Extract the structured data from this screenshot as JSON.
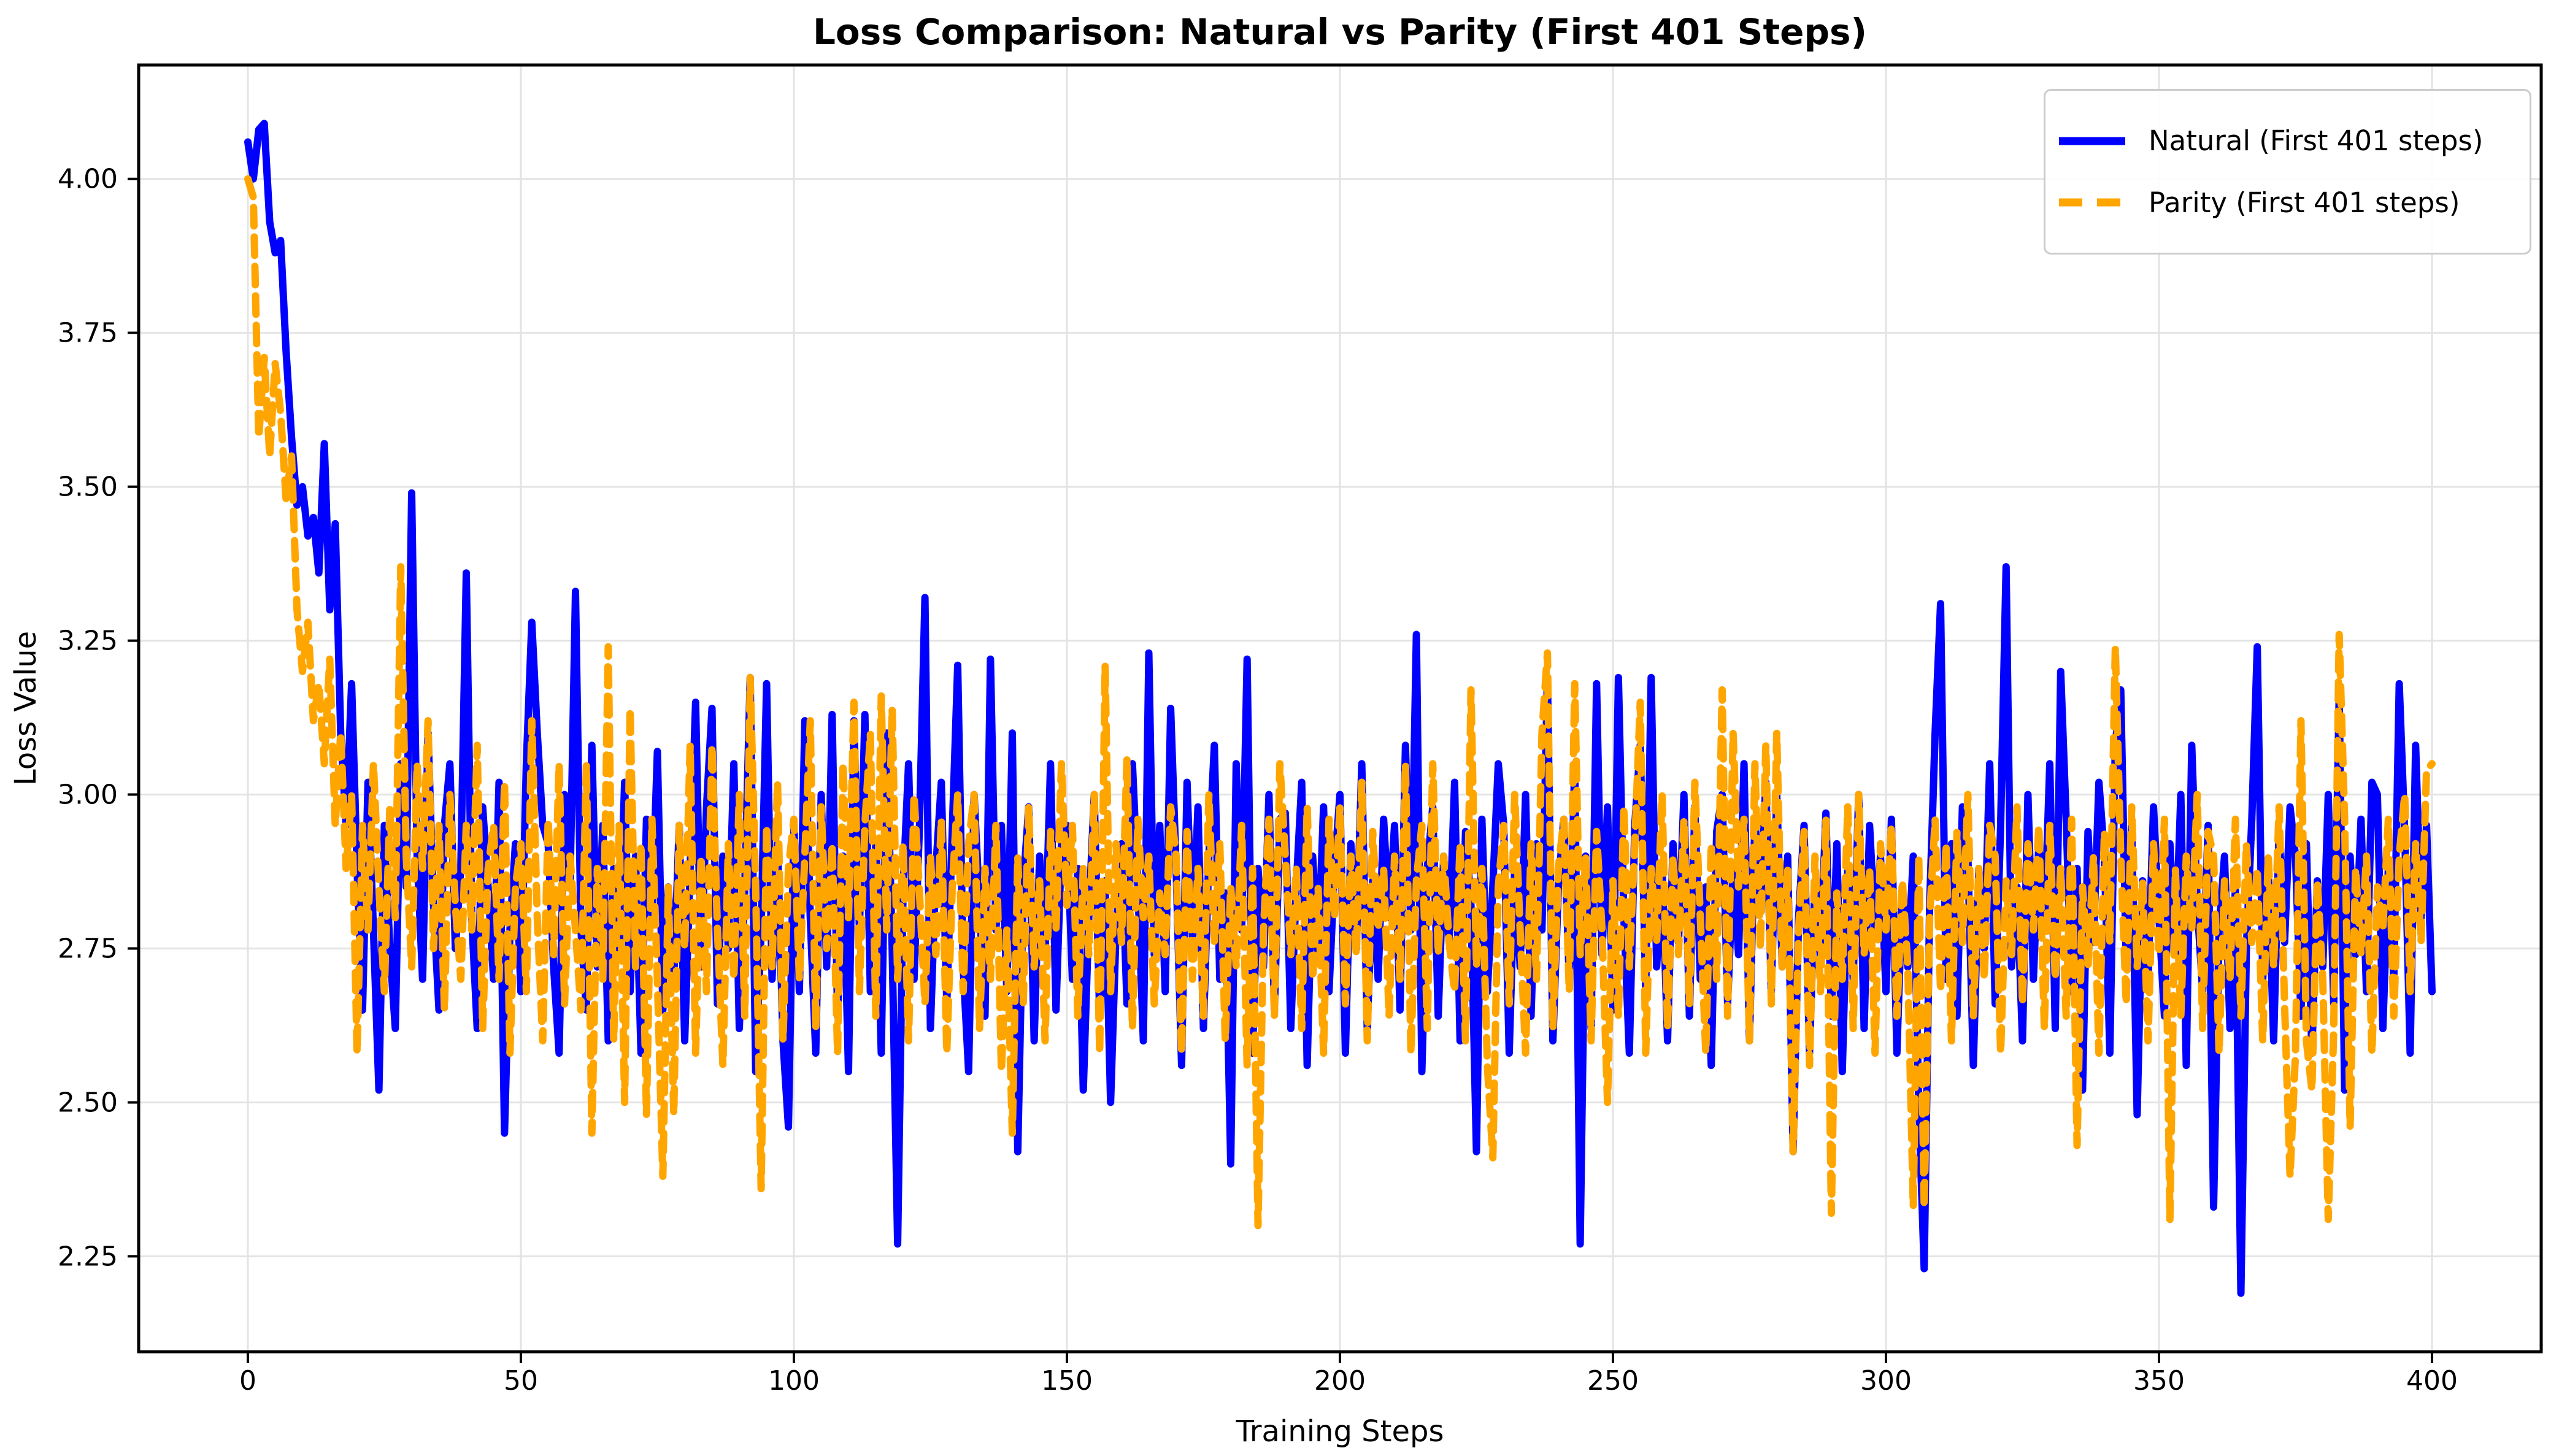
{
  "chart_data": {
    "type": "line",
    "title": "Loss Comparison: Natural vs Parity (First 401 Steps)",
    "xlabel": "Training Steps",
    "ylabel": "Loss Value",
    "x_ticks": [
      0,
      50,
      100,
      150,
      200,
      250,
      300,
      350,
      400
    ],
    "y_ticks": [
      2.25,
      2.5,
      2.75,
      3.0,
      3.25,
      3.5,
      3.75,
      4.0
    ],
    "y_tick_labels": [
      "2.25",
      "2.50",
      "2.75",
      "3.00",
      "3.25",
      "3.50",
      "3.75",
      "4.00"
    ],
    "xlim": [
      -20,
      420
    ],
    "ylim": [
      2.095,
      4.185
    ],
    "grid": true,
    "grid_color": "#e3e3e3",
    "spine_color": "#000000",
    "background_color": "#ffffff",
    "legend_position": "upper right",
    "series": [
      {
        "name": "Natural (First 401 steps)",
        "color": "#0000ff",
        "style": "solid",
        "x_start": 0,
        "x_step": 1,
        "values": [
          4.06,
          4.0,
          4.08,
          4.09,
          3.93,
          3.88,
          3.9,
          3.72,
          3.58,
          3.47,
          3.5,
          3.42,
          3.45,
          3.36,
          3.57,
          3.3,
          3.44,
          3.1,
          2.95,
          3.18,
          2.88,
          2.65,
          3.02,
          2.78,
          2.52,
          2.95,
          2.75,
          2.62,
          3.05,
          2.85,
          3.49,
          2.9,
          2.7,
          3.1,
          2.82,
          2.65,
          2.95,
          3.05,
          2.75,
          2.88,
          3.36,
          2.8,
          2.62,
          2.98,
          2.85,
          2.7,
          3.02,
          2.45,
          2.78,
          2.92,
          2.68,
          3.05,
          3.28,
          3.1,
          2.95,
          2.92,
          2.72,
          2.58,
          3.0,
          2.85,
          3.33,
          2.78,
          2.65,
          3.08,
          2.72,
          2.95,
          2.6,
          2.88,
          2.74,
          3.02,
          2.68,
          2.9,
          2.58,
          2.96,
          2.8,
          3.07,
          2.65,
          2.85,
          2.7,
          2.95,
          2.6,
          2.88,
          3.15,
          2.72,
          2.98,
          3.14,
          2.66,
          2.9,
          2.75,
          3.05,
          2.62,
          2.85,
          3.19,
          2.55,
          2.78,
          3.18,
          2.7,
          2.92,
          2.6,
          2.46,
          2.95,
          2.68,
          3.12,
          2.8,
          2.58,
          3.0,
          2.72,
          3.13,
          2.64,
          2.9,
          2.55,
          3.12,
          2.78,
          3.13,
          2.68,
          2.92,
          2.58,
          3.1,
          2.75,
          2.27,
          2.85,
          3.05,
          2.7,
          2.95,
          3.32,
          2.62,
          2.88,
          3.02,
          2.66,
          2.94,
          3.21,
          2.72,
          2.55,
          3.0,
          2.82,
          2.64,
          3.22,
          2.78,
          2.95,
          2.68,
          3.1,
          2.42,
          2.85,
          2.98,
          2.6,
          2.9,
          2.74,
          3.05,
          2.65,
          2.92,
          2.95,
          2.7,
          2.88,
          2.52,
          2.8,
          3.0,
          2.64,
          2.86,
          2.5,
          2.78,
          2.92,
          2.66,
          3.05,
          2.85,
          2.6,
          3.23,
          2.74,
          2.95,
          2.68,
          3.14,
          2.88,
          2.56,
          3.02,
          2.76,
          2.98,
          2.62,
          2.9,
          3.08,
          2.7,
          2.84,
          2.4,
          3.05,
          2.78,
          3.22,
          2.58,
          2.88,
          2.72,
          3.0,
          2.65,
          2.96,
          2.97,
          2.62,
          2.85,
          3.02,
          2.56,
          2.9,
          2.74,
          2.98,
          2.68,
          2.88,
          3.0,
          2.58,
          2.92,
          2.75,
          3.05,
          2.62,
          2.86,
          2.7,
          2.96,
          2.8,
          2.95,
          2.65,
          3.08,
          2.78,
          3.26,
          2.55,
          2.88,
          2.98,
          2.64,
          2.9,
          2.76,
          3.02,
          2.6,
          2.94,
          2.82,
          2.42,
          2.96,
          2.68,
          2.85,
          3.05,
          2.95,
          2.58,
          2.88,
          2.72,
          3.0,
          2.64,
          2.92,
          2.78,
          3.19,
          2.6,
          2.85,
          2.96,
          2.7,
          3.05,
          2.27,
          2.9,
          2.62,
          3.18,
          2.74,
          2.98,
          2.65,
          3.19,
          2.8,
          2.58,
          2.95,
          3.08,
          2.68,
          3.19,
          2.72,
          2.88,
          2.6,
          2.92,
          2.76,
          3.0,
          2.64,
          2.98,
          2.7,
          2.85,
          2.56,
          2.94,
          3.0,
          2.66,
          2.88,
          2.74,
          3.05,
          2.6,
          2.96,
          2.82,
          3.02,
          2.68,
          3.0,
          2.72,
          2.9,
          2.42,
          2.8,
          2.95,
          2.58,
          2.86,
          2.74,
          2.97,
          2.64,
          2.92,
          2.55,
          2.88,
          2.7,
          3.0,
          2.62,
          2.95,
          2.78,
          2.9,
          2.68,
          2.96,
          2.58,
          2.85,
          2.72,
          2.9,
          2.5,
          2.23,
          2.82,
          3.1,
          3.31,
          2.7,
          2.92,
          2.64,
          2.98,
          2.9,
          2.56,
          2.88,
          2.75,
          3.05,
          2.66,
          2.95,
          3.37,
          2.72,
          2.85,
          2.6,
          3.0,
          2.7,
          2.92,
          2.78,
          3.05,
          2.62,
          3.2,
          2.96,
          2.68,
          2.88,
          2.52,
          2.94,
          2.76,
          3.02,
          2.9,
          2.58,
          3.08,
          3.17,
          2.72,
          2.95,
          2.48,
          2.86,
          2.7,
          2.98,
          2.8,
          2.64,
          2.92,
          2.74,
          3.0,
          2.56,
          3.08,
          2.82,
          2.68,
          2.95,
          2.33,
          2.78,
          2.9,
          2.62,
          2.85,
          2.19,
          2.75,
          2.96,
          3.24,
          2.7,
          2.88,
          2.6,
          2.94,
          2.76,
          2.98,
          2.9,
          2.64,
          2.92,
          2.58,
          2.86,
          2.72,
          3.0,
          2.66,
          3.16,
          2.52,
          2.9,
          2.74,
          2.96,
          2.68,
          3.02,
          3.0,
          2.62,
          2.88,
          2.7,
          3.18,
          2.94,
          2.58,
          3.08,
          2.8,
          2.95,
          2.68
        ]
      },
      {
        "name": "Parity (First 401 steps)",
        "color": "#ffa500",
        "style": "dashed",
        "x_start": 0,
        "x_step": 1,
        "values": [
          4.0,
          3.97,
          3.58,
          3.71,
          3.55,
          3.7,
          3.62,
          3.48,
          3.55,
          3.3,
          3.2,
          3.28,
          3.12,
          3.18,
          3.05,
          3.22,
          2.95,
          3.1,
          2.88,
          3.0,
          2.58,
          2.95,
          2.78,
          3.05,
          2.85,
          2.68,
          2.98,
          2.8,
          3.37,
          2.9,
          2.72,
          3.05,
          2.88,
          3.12,
          2.75,
          2.95,
          2.65,
          3.0,
          2.82,
          2.7,
          2.95,
          2.78,
          3.08,
          2.62,
          2.88,
          2.95,
          2.7,
          3.02,
          2.58,
          2.85,
          2.92,
          2.68,
          3.12,
          2.8,
          2.6,
          2.96,
          2.74,
          3.05,
          2.66,
          2.9,
          2.78,
          2.65,
          3.05,
          2.45,
          2.88,
          2.7,
          3.24,
          2.6,
          2.95,
          2.5,
          3.14,
          2.72,
          2.92,
          2.48,
          2.96,
          2.7,
          2.38,
          2.85,
          2.48,
          2.95,
          2.75,
          3.08,
          2.58,
          2.9,
          2.68,
          3.08,
          2.78,
          2.56,
          2.92,
          2.7,
          3.0,
          2.64,
          3.19,
          2.85,
          2.36,
          2.95,
          2.72,
          3.02,
          2.6,
          2.88,
          2.96,
          2.7,
          2.9,
          3.12,
          2.62,
          2.98,
          2.75,
          2.92,
          2.58,
          3.05,
          2.8,
          3.15,
          2.68,
          2.95,
          3.1,
          2.64,
          3.16,
          2.78,
          3.14,
          2.7,
          2.92,
          2.6,
          3.0,
          2.84,
          2.66,
          2.9,
          2.74,
          2.96,
          2.58,
          2.85,
          3.0,
          2.68,
          2.92,
          3.0,
          2.62,
          2.88,
          2.7,
          2.95,
          2.55,
          2.78,
          2.45,
          2.9,
          2.66,
          2.98,
          2.72,
          2.86,
          2.6,
          2.94,
          2.78,
          3.05,
          2.82,
          2.95,
          2.64,
          2.88,
          2.74,
          3.0,
          2.58,
          3.21,
          2.68,
          2.92,
          2.76,
          3.06,
          2.62,
          2.96,
          2.8,
          2.9,
          2.66,
          2.84,
          2.74,
          2.98,
          2.9,
          2.58,
          2.94,
          2.7,
          2.88,
          2.64,
          3.0,
          2.76,
          2.92,
          2.6,
          2.85,
          2.72,
          2.95,
          2.56,
          2.88,
          2.3,
          2.78,
          2.96,
          2.64,
          3.05,
          2.9,
          2.74,
          2.88,
          2.62,
          2.98,
          2.7,
          2.85,
          2.58,
          2.96,
          2.8,
          2.98,
          2.66,
          2.9,
          2.74,
          3.02,
          2.6,
          2.94,
          2.78,
          2.88,
          2.64,
          2.9,
          2.7,
          3.05,
          2.58,
          2.86,
          2.95,
          2.62,
          3.05,
          2.74,
          2.9,
          2.76,
          2.68,
          2.92,
          2.6,
          3.17,
          2.72,
          2.88,
          2.56,
          2.41,
          2.85,
          2.95,
          2.66,
          3.0,
          2.78,
          2.58,
          2.92,
          2.7,
          3.1,
          3.23,
          2.62,
          2.88,
          2.96,
          2.68,
          3.18,
          2.74,
          2.9,
          2.6,
          2.94,
          2.78,
          2.5,
          2.86,
          2.64,
          2.98,
          2.72,
          2.92,
          3.15,
          2.58,
          2.88,
          2.76,
          3.0,
          2.62,
          2.9,
          2.74,
          2.96,
          2.66,
          3.02,
          2.8,
          2.58,
          2.92,
          2.7,
          3.17,
          2.64,
          3.1,
          2.85,
          2.96,
          2.6,
          3.05,
          2.75,
          3.08,
          2.66,
          3.1,
          2.72,
          2.88,
          2.42,
          2.78,
          2.94,
          2.56,
          2.9,
          2.68,
          2.96,
          2.32,
          2.84,
          2.7,
          2.98,
          2.62,
          3.0,
          2.74,
          2.88,
          2.58,
          2.92,
          2.78,
          2.95,
          2.64,
          2.86,
          2.72,
          2.33,
          2.9,
          2.33,
          2.8,
          2.96,
          2.68,
          2.92,
          2.6,
          2.94,
          2.76,
          3.0,
          2.64,
          2.88,
          2.7,
          2.95,
          2.9,
          2.58,
          2.86,
          2.74,
          2.98,
          2.66,
          2.92,
          2.78,
          2.95,
          2.62,
          2.95,
          2.7,
          2.88,
          2.64,
          2.96,
          2.43,
          2.85,
          2.72,
          2.9,
          2.58,
          2.94,
          2.76,
          3.24,
          2.9,
          2.66,
          2.98,
          2.72,
          2.86,
          2.6,
          2.92,
          2.74,
          2.96,
          2.31,
          2.88,
          2.64,
          2.9,
          2.78,
          3.0,
          2.62,
          2.94,
          2.9,
          2.58,
          2.86,
          2.7,
          2.96,
          2.64,
          2.92,
          2.76,
          2.88,
          2.6,
          2.9,
          2.72,
          2.98,
          2.66,
          2.38,
          2.58,
          3.12,
          2.6,
          2.52,
          2.86,
          2.7,
          2.31,
          2.62,
          3.26,
          2.96,
          2.46,
          2.88,
          2.74,
          2.9,
          2.58,
          2.85,
          2.78,
          2.96,
          2.64,
          2.9,
          3.0,
          2.68,
          2.92,
          2.76,
          3.04,
          3.05
        ]
      }
    ]
  }
}
